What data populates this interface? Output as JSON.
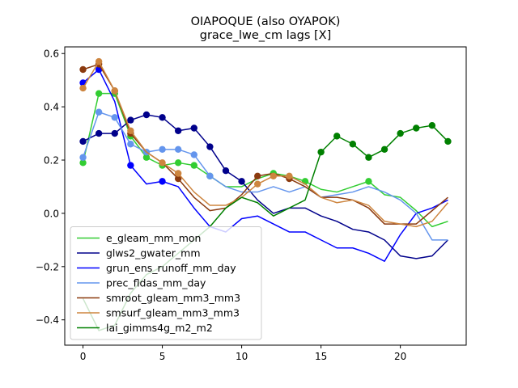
{
  "chart_data": {
    "type": "line",
    "title": "OIAPOQUE (also OYAPOK)",
    "subtitle": "grace_lwe_cm lags [X]",
    "xlabel": "",
    "ylabel": "",
    "xlim": [
      -1.15,
      24.15
    ],
    "ylim": [
      -0.495,
      0.625
    ],
    "x_ticks": [
      0,
      5,
      10,
      15,
      20
    ],
    "y_ticks": [
      -0.4,
      -0.2,
      0.0,
      0.2,
      0.4,
      0.6
    ],
    "x_tick_labels": [
      "0",
      "5",
      "10",
      "15",
      "20"
    ],
    "y_tick_labels": [
      "−0.4",
      "−0.2",
      "0.0",
      "0.2",
      "0.4",
      "0.6"
    ],
    "grid": false,
    "legend_position": "lower-left",
    "x": [
      0,
      1,
      2,
      3,
      4,
      5,
      6,
      7,
      8,
      9,
      10,
      11,
      12,
      13,
      14,
      15,
      16,
      17,
      18,
      19,
      20,
      21,
      22,
      23
    ],
    "series": [
      {
        "name": "e_gleam_mm_mon",
        "color": "#32cd32",
        "values": [
          0.19,
          0.45,
          0.45,
          0.29,
          0.21,
          0.18,
          0.19,
          0.18,
          0.14,
          0.1,
          0.1,
          0.13,
          0.15,
          0.14,
          0.12,
          0.09,
          0.08,
          0.1,
          0.12,
          0.07,
          0.06,
          0.01,
          -0.05,
          -0.03
        ],
        "markers": [
          0,
          1,
          2,
          3,
          4,
          5,
          6,
          7,
          8,
          12,
          14,
          18
        ]
      },
      {
        "name": "glws2_gwater_mm",
        "color": "#00008b",
        "values": [
          0.27,
          0.3,
          0.3,
          0.35,
          0.37,
          0.36,
          0.31,
          0.32,
          0.25,
          0.16,
          0.12,
          0.05,
          0.0,
          0.02,
          0.02,
          -0.01,
          -0.03,
          -0.06,
          -0.07,
          -0.1,
          -0.16,
          -0.17,
          -0.16,
          -0.1
        ],
        "markers": [
          0,
          1,
          2,
          3,
          4,
          5,
          6,
          7,
          8,
          9,
          10
        ]
      },
      {
        "name": "grun_ens_runoff_mm_day",
        "color": "#0000ff",
        "values": [
          0.49,
          0.54,
          0.42,
          0.18,
          0.11,
          0.12,
          0.1,
          0.02,
          -0.05,
          -0.07,
          -0.02,
          -0.01,
          -0.04,
          -0.07,
          -0.07,
          -0.1,
          -0.13,
          -0.13,
          -0.15,
          -0.18,
          -0.08,
          0.0,
          0.02,
          0.05
        ],
        "markers": [
          0,
          1,
          3,
          5
        ]
      },
      {
        "name": "prec_fldas_mm_day",
        "color": "#6495ed",
        "values": [
          0.21,
          0.38,
          0.36,
          0.26,
          0.23,
          0.24,
          0.24,
          0.22,
          0.14,
          0.1,
          0.08,
          0.08,
          0.1,
          0.08,
          0.1,
          0.06,
          0.07,
          0.08,
          0.1,
          0.08,
          0.05,
          0.0,
          -0.1,
          -0.1
        ],
        "markers": [
          0,
          1,
          2,
          3,
          4,
          5,
          6,
          7,
          8
        ]
      },
      {
        "name": "smroot_gleam_mm3_mm3",
        "color": "#8b3a0f",
        "values": [
          0.54,
          0.56,
          0.46,
          0.3,
          0.23,
          0.19,
          0.13,
          0.06,
          0.01,
          0.02,
          0.07,
          0.14,
          0.15,
          0.13,
          0.1,
          0.06,
          0.06,
          0.05,
          0.02,
          -0.04,
          -0.04,
          -0.04,
          0.01,
          0.06
        ],
        "markers": [
          0,
          1,
          2,
          3,
          6,
          11,
          13
        ]
      },
      {
        "name": "smsurf_gleam_mm3_mm3",
        "color": "#cd853f",
        "values": [
          0.47,
          0.57,
          0.46,
          0.31,
          0.23,
          0.19,
          0.15,
          0.08,
          0.03,
          0.03,
          0.06,
          0.11,
          0.14,
          0.14,
          0.11,
          0.06,
          0.04,
          0.05,
          0.03,
          -0.03,
          -0.04,
          -0.05,
          -0.03,
          0.04
        ],
        "markers": [
          0,
          1,
          2,
          3,
          5,
          6,
          11,
          12,
          13
        ]
      },
      {
        "name": "lai_gimms4g_m2_m2",
        "color": "#008000",
        "values": [
          -0.32,
          -0.44,
          -0.42,
          -0.3,
          -0.23,
          -0.2,
          -0.15,
          -0.1,
          -0.05,
          0.02,
          0.06,
          0.04,
          -0.01,
          0.02,
          0.05,
          0.23,
          0.29,
          0.26,
          0.21,
          0.24,
          0.3,
          0.32,
          0.33,
          0.27
        ],
        "markers": [
          15,
          16,
          17,
          18,
          19,
          20,
          21,
          22,
          23
        ]
      }
    ]
  }
}
